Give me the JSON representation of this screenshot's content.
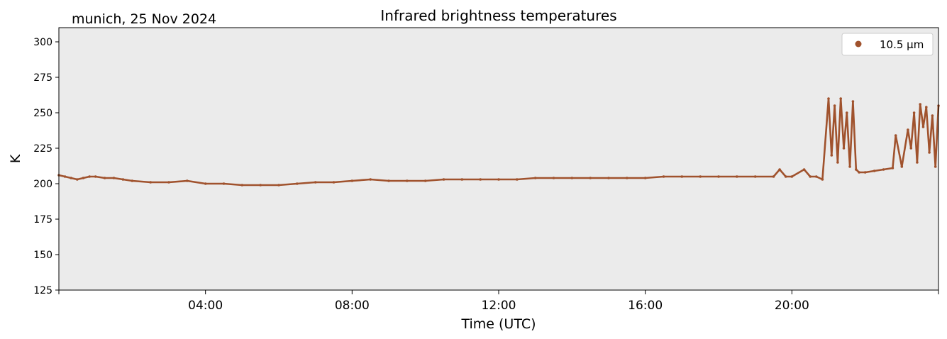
{
  "chart_data": {
    "type": "scatter",
    "title": "Infrared brightness temperatures",
    "subtitle": "munich, 25 Nov 2024",
    "xlabel": "Time (UTC)",
    "ylabel": "K",
    "x_unit": "hours UTC",
    "xlim": [
      "00:00",
      "24:00"
    ],
    "ylim": [
      125,
      310
    ],
    "x_ticks": [
      "04:00",
      "08:00",
      "12:00",
      "16:00",
      "20:00"
    ],
    "y_ticks": [
      125,
      150,
      175,
      200,
      225,
      250,
      275,
      300
    ],
    "grid": false,
    "background": "#ebebeb",
    "legend_position": "top-right",
    "series": [
      {
        "name": "10.5 µm",
        "color": "#a0522d",
        "x": [
          "00:00",
          "00:10",
          "00:20",
          "00:30",
          "00:40",
          "00:50",
          "01:00",
          "01:15",
          "01:30",
          "01:45",
          "02:00",
          "02:30",
          "03:00",
          "03:30",
          "04:00",
          "04:30",
          "05:00",
          "05:30",
          "06:00",
          "06:30",
          "07:00",
          "07:30",
          "08:00",
          "08:30",
          "09:00",
          "09:30",
          "10:00",
          "10:30",
          "11:00",
          "11:30",
          "12:00",
          "12:30",
          "13:00",
          "13:30",
          "14:00",
          "14:30",
          "15:00",
          "15:30",
          "16:00",
          "16:30",
          "17:00",
          "17:30",
          "18:00",
          "18:30",
          "19:00",
          "19:30",
          "19:40",
          "19:50",
          "20:00",
          "20:20",
          "20:30",
          "20:40",
          "20:50",
          "21:00",
          "21:05",
          "21:10",
          "21:15",
          "21:20",
          "21:25",
          "21:30",
          "21:35",
          "21:40",
          "21:45",
          "21:50",
          "22:00",
          "22:15",
          "22:30",
          "22:45",
          "22:50",
          "23:00",
          "23:10",
          "23:15",
          "23:20",
          "23:25",
          "23:30",
          "23:35",
          "23:40",
          "23:45",
          "23:50",
          "23:55",
          "24:00"
        ],
        "y": [
          206,
          205,
          204,
          203,
          204,
          205,
          205,
          204,
          204,
          203,
          202,
          201,
          201,
          202,
          200,
          200,
          199,
          199,
          199,
          200,
          201,
          201,
          202,
          203,
          202,
          202,
          202,
          203,
          203,
          203,
          203,
          203,
          204,
          204,
          204,
          204,
          204,
          204,
          204,
          205,
          205,
          205,
          205,
          205,
          205,
          205,
          210,
          205,
          205,
          210,
          205,
          205,
          203,
          260,
          220,
          255,
          215,
          260,
          225,
          250,
          212,
          258,
          210,
          208,
          208,
          209,
          210,
          211,
          234,
          212,
          238,
          225,
          250,
          215,
          256,
          240,
          254,
          222,
          248,
          212,
          255
        ]
      }
    ]
  }
}
